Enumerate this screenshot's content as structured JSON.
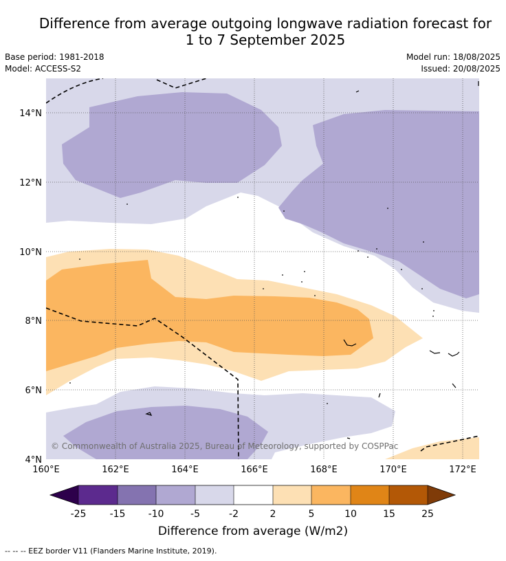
{
  "title": {
    "line1": "Difference from average outgoing longwave radiation forecast for",
    "line2": "1 to 7 September 2025"
  },
  "meta": {
    "base_period": "Base period: 1981-2018",
    "model": "Model: ACCESS-S2",
    "model_run": "Model run: 18/08/2025",
    "issued": "Issued: 20/08/2025"
  },
  "map": {
    "lon_labels": [
      "160°E",
      "162°E",
      "164°E",
      "166°E",
      "168°E",
      "170°E",
      "172°E"
    ],
    "lat_labels": [
      "14°N",
      "12°N",
      "10°N",
      "8°N",
      "6°N",
      "4°N"
    ],
    "copyright": "© Commonwealth of Australia 2025, Bureau of Meteorology, supported by COSPPac"
  },
  "colorbar": {
    "tick_labels": [
      "-25",
      "-15",
      "-10",
      "-5",
      "-2",
      "2",
      "5",
      "10",
      "15",
      "25"
    ],
    "colors": [
      "#2d004b",
      "#5c2a8e",
      "#8473b0",
      "#b0a8d2",
      "#d8d8ea",
      "#ffffff",
      "#fde0b4",
      "#fbb660",
      "#e08517",
      "#b35806",
      "#7f3b08"
    ],
    "label": "Difference from average (W/m2)"
  },
  "footnote": "--  --  -- EEZ border V11 (Flanders Marine Institute, 2019)."
}
